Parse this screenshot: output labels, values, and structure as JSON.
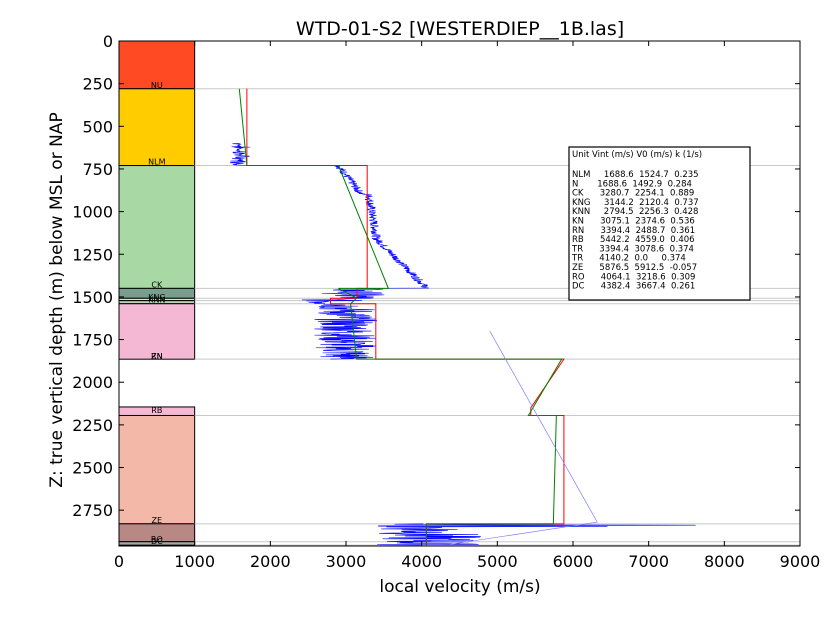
{
  "chart_data": {
    "type": "line",
    "title": "WTD-01-S2 [WESTERDIEP__1B.las]",
    "xlabel": "local velocity (m/s)",
    "ylabel": "Z: true vertical depth (m) below MSL or NAP",
    "xlim": [
      0,
      9000
    ],
    "ylim": [
      2960,
      0
    ],
    "y_inverted": true,
    "grid": false,
    "xticks": [
      "0",
      "1000",
      "2000",
      "3000",
      "4000",
      "5000",
      "6000",
      "7000",
      "8000",
      "9000"
    ],
    "yticks": [
      "0",
      "250",
      "500",
      "750",
      "1000",
      "1250",
      "1500",
      "1750",
      "2000",
      "2250",
      "2500",
      "2750"
    ],
    "units": [
      {
        "name": "",
        "top": 0,
        "bottom": 280,
        "color": "#ff4a24"
      },
      {
        "name": "NU",
        "top": 280,
        "bottom": 730,
        "color": "#ffcc00"
      },
      {
        "name": "NLM",
        "top": 730,
        "bottom": 1450,
        "color": "#a8d8a3"
      },
      {
        "name": "CK",
        "top": 1450,
        "bottom": 1508,
        "color": "#7a9e8e"
      },
      {
        "name": "KNG",
        "top": 1508,
        "bottom": 1522,
        "color": "#cfe8cf"
      },
      {
        "name": "KNN",
        "top": 1522,
        "bottom": 1540,
        "color": "#b6d6b6"
      },
      {
        "name": "RN",
        "top": 1540,
        "bottom": 1865,
        "color": "#f4b8d4"
      },
      {
        "name": "RB",
        "top": 2145,
        "bottom": 2195,
        "color": "#f4b8d4"
      },
      {
        "name": "ZE",
        "top": 2195,
        "bottom": 2830,
        "color": "#f4b8a8"
      },
      {
        "name": "RO",
        "top": 2830,
        "bottom": 2935,
        "color": "#b88884"
      },
      {
        "name": "DC",
        "top": 2935,
        "bottom": 2955,
        "color": "#a8a8a8"
      }
    ],
    "unit_labels": [
      {
        "text": "NU",
        "depth": 258
      },
      {
        "text": "NLM",
        "depth": 705
      },
      {
        "text": "CK",
        "depth": 1428
      },
      {
        "text": "KNG",
        "depth": 1500
      },
      {
        "text": "KNN",
        "depth": 1516
      },
      {
        "text": "RN",
        "depth": 1845
      },
      {
        "text": "ZN",
        "depth": 1845
      },
      {
        "text": "RB",
        "depth": 2162
      },
      {
        "text": "ZE",
        "depth": 2808
      },
      {
        "text": "RO",
        "depth": 2918
      },
      {
        "text": "DC",
        "depth": 2930
      }
    ],
    "boundaries": [
      280,
      730,
      1450,
      1508,
      1522,
      1540,
      1865,
      2195,
      2830,
      2935,
      2955
    ],
    "series": [
      {
        "kind": "interval_velocity",
        "color": "#ff0000",
        "points": [
          [
            1690,
            280
          ],
          [
            1690,
            730
          ],
          [
            3280,
            730
          ],
          [
            3280,
            1450
          ],
          [
            3145,
            1450
          ],
          [
            3145,
            1508
          ],
          [
            2795,
            1508
          ],
          [
            2795,
            1540
          ],
          [
            3394,
            1540
          ],
          [
            3394,
            1865
          ],
          [
            5880,
            1865
          ],
          [
            5442,
            2150
          ],
          [
            5442,
            2195
          ],
          [
            5880,
            2195
          ],
          [
            5880,
            2830
          ],
          [
            4064,
            2830
          ],
          [
            4064,
            2955
          ]
        ]
      },
      {
        "kind": "v0_k_model",
        "color": "#008000",
        "points": [
          [
            1590,
            280
          ],
          [
            1690,
            730
          ],
          [
            2900,
            730
          ],
          [
            3560,
            1450
          ],
          [
            2900,
            1450
          ],
          [
            3140,
            1508
          ],
          [
            3060,
            1540
          ],
          [
            3140,
            1865
          ],
          [
            5850,
            1865
          ],
          [
            5410,
            2195
          ],
          [
            5780,
            2195
          ],
          [
            5740,
            2830
          ],
          [
            4060,
            2830
          ],
          [
            4060,
            2955
          ]
        ]
      },
      {
        "kind": "trend",
        "color": "#8080ff",
        "points": [
          [
            4900,
            1700
          ],
          [
            6320,
            2820
          ],
          [
            4380,
            2950
          ]
        ]
      }
    ],
    "legend": {
      "header": "Unit     Vint (m/s)      V0 (m/s)         k (1/s)",
      "rows": [
        "NLM     1688.6  1524.7  0.235",
        "N       1688.6  1492.9  0.284",
        "CK      3280.7  2254.1  0.889",
        "KNG     3144.2  2120.4  0.737",
        "KNN     2794.5  2256.3  0.428",
        "KN      3075.1  2374.6  0.536",
        "RN      3394.4  2488.7  0.361",
        "RB      5442.2  4559.0  0.406",
        "TR      3394.4  3078.6  0.374",
        "TR      4140.2  0.0     0.374",
        "ZE      5876.5  5912.5  -0.057",
        "RO      4064.1  3218.6  0.309",
        "DC      4382.4  3667.4  0.261"
      ],
      "placement": "right-middle"
    }
  }
}
